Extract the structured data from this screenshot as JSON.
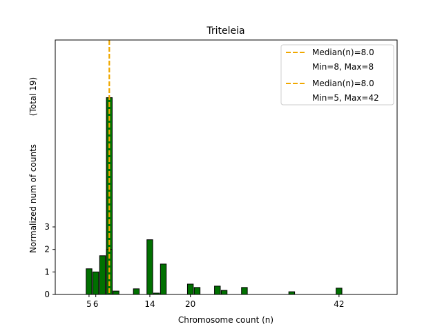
{
  "chart_data": {
    "type": "bar",
    "title": "Triteleia",
    "xlabel": "Chromosome count (n)",
    "ylabel": "Normalized num of counts",
    "ylabel2": "(Total 19)",
    "xlim": [
      0,
      50.6
    ],
    "ylim": [
      0,
      11.3
    ],
    "xticks": [
      5,
      6,
      14,
      20,
      42
    ],
    "yticks": [
      0,
      1,
      2,
      3
    ],
    "bar_color": "#007000",
    "median_color": "#f0a800",
    "series": [
      {
        "name": "series-1",
        "x": [
          8
        ],
        "values": [
          8.74
        ]
      },
      {
        "name": "series-2",
        "x": [
          5,
          6,
          7,
          8,
          9,
          12,
          14,
          15,
          16,
          20,
          21,
          24,
          25,
          28,
          35,
          42
        ],
        "values": [
          1.14,
          1.0,
          1.72,
          2.0,
          0.15,
          0.25,
          2.43,
          0.06,
          1.35,
          0.46,
          0.31,
          0.37,
          0.18,
          0.31,
          0.12,
          0.28
        ]
      }
    ],
    "medians": [
      8,
      8
    ],
    "legend": {
      "placement": "top-right",
      "entries": [
        "Median(n)=8.0",
        "Min=8, Max=8",
        "Median(n)=8.0",
        "Min=5, Max=42"
      ]
    }
  }
}
